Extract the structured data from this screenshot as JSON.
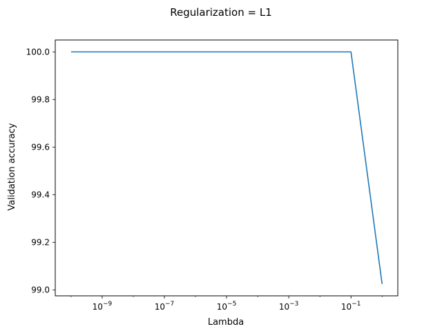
{
  "chart_data": {
    "type": "line",
    "title": "Regularization = L1",
    "xlabel": "Lambda",
    "ylabel": "Validation accuracy",
    "x_scale": "log",
    "xlim": [
      3.1e-11,
      3.2
    ],
    "ylim": [
      98.975,
      100.05
    ],
    "x_ticks": [
      {
        "value": 1e-09,
        "base": "10",
        "exp": "−9"
      },
      {
        "value": 1e-07,
        "base": "10",
        "exp": "−7"
      },
      {
        "value": 1e-05,
        "base": "10",
        "exp": "−5"
      },
      {
        "value": 0.001,
        "base": "10",
        "exp": "−3"
      },
      {
        "value": 0.1,
        "base": "10",
        "exp": "−1"
      }
    ],
    "y_ticks": [
      "99.0",
      "99.2",
      "99.4",
      "99.6",
      "99.8",
      "100.0"
    ],
    "grid": false,
    "legend": "none",
    "series": [
      {
        "color": "#1f77b4",
        "x": [
          1e-10,
          1e-09,
          1e-08,
          1e-07,
          1e-06,
          1e-05,
          0.0001,
          0.001,
          0.01,
          0.1,
          1
        ],
        "y": [
          100.0,
          100.0,
          100.0,
          100.0,
          100.0,
          100.0,
          100.0,
          100.0,
          100.0,
          100.0,
          99.025
        ]
      }
    ]
  }
}
